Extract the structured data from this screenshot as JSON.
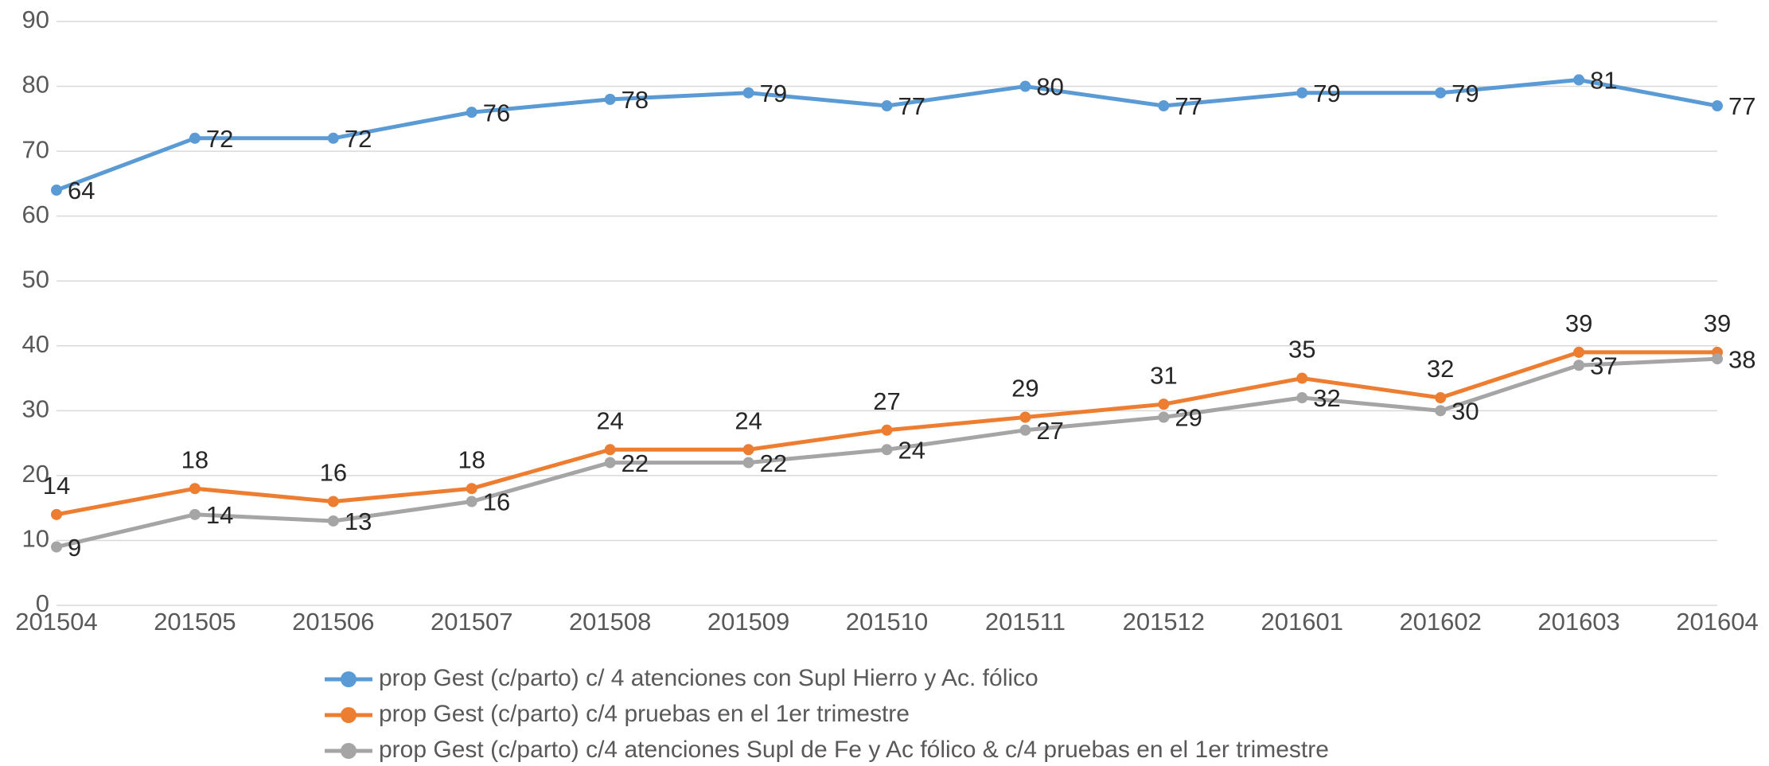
{
  "chart_data": {
    "type": "line",
    "categories": [
      "201504",
      "201505",
      "201506",
      "201507",
      "201508",
      "201509",
      "201510",
      "201511",
      "201512",
      "201601",
      "201602",
      "201603",
      "201604"
    ],
    "series": [
      {
        "name": "prop Gest (c/parto) c/ 4 atenciones con Supl Hierro y Ac. fólico",
        "color": "#5b9bd5",
        "label_position": "right",
        "values": [
          64,
          72,
          72,
          76,
          78,
          79,
          77,
          80,
          77,
          79,
          79,
          81,
          77
        ]
      },
      {
        "name": "prop Gest (c/parto) c/4 pruebas en el 1er trimestre",
        "color": "#ed7d31",
        "label_position": "above",
        "values": [
          14,
          18,
          16,
          18,
          24,
          24,
          27,
          29,
          31,
          35,
          32,
          39,
          39
        ]
      },
      {
        "name": "prop Gest (c/parto) c/4 atenciones Supl de Fe y Ac fólico & c/4 pruebas en el 1er trimestre",
        "color": "#a5a5a5",
        "label_position": "right",
        "values": [
          9,
          14,
          13,
          16,
          22,
          22,
          24,
          27,
          29,
          32,
          30,
          37,
          38
        ]
      }
    ],
    "ylim": [
      0,
      90
    ],
    "yticks": [
      0,
      10,
      20,
      30,
      40,
      50,
      60,
      70,
      80,
      90
    ],
    "grid": true,
    "legend": "bottom"
  }
}
